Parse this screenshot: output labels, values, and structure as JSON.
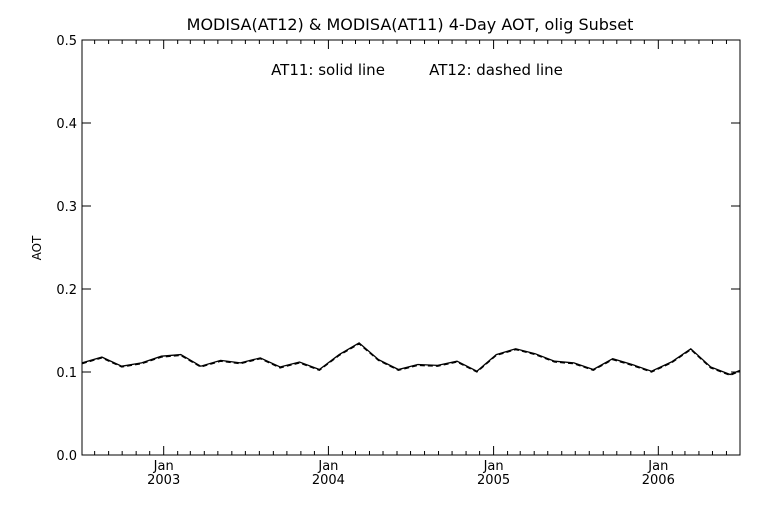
{
  "chart_data": {
    "type": "line",
    "title": "MODISA(AT12) & MODISA(AT11) 4-Day AOT, olig Subset",
    "legend_text": [
      "AT11: solid line",
      "AT12: dashed line"
    ],
    "legend_placement": "top-center",
    "xlabel": "",
    "ylabel": "AOT",
    "ylim": [
      0.0,
      0.5
    ],
    "xlim": [
      "2002-07-04",
      "2006-07-01"
    ],
    "yticks": [
      "0.0",
      "0.1",
      "0.2",
      "0.3",
      "0.4",
      "0.5"
    ],
    "xticks": [
      {
        "x": "2003-01-01",
        "month": "Jan",
        "year": "2003"
      },
      {
        "x": "2004-01-01",
        "month": "Jan",
        "year": "2004"
      },
      {
        "x": "2005-01-01",
        "month": "Jan",
        "year": "2005"
      },
      {
        "x": "2006-01-01",
        "month": "Jan",
        "year": "2006"
      }
    ],
    "grid": false,
    "x": [
      "2002-07-04",
      "2002-08-17",
      "2002-09-30",
      "2002-11-13",
      "2002-12-27",
      "2003-02-08",
      "2003-03-24",
      "2003-05-07",
      "2003-06-20",
      "2003-08-03",
      "2003-09-16",
      "2003-10-29",
      "2003-12-12",
      "2004-01-25",
      "2004-03-09",
      "2004-04-21",
      "2004-06-04",
      "2004-07-17",
      "2004-08-30",
      "2004-10-12",
      "2004-11-25",
      "2005-01-07",
      "2005-02-19",
      "2005-04-03",
      "2005-05-16",
      "2005-06-28",
      "2005-08-10",
      "2005-09-22",
      "2005-11-04",
      "2005-12-17",
      "2006-01-30",
      "2006-03-14",
      "2006-04-27",
      "2006-06-09",
      "2006-07-01"
    ],
    "series": [
      {
        "name": "AT11",
        "style": "solid",
        "values": [
          0.111,
          0.118,
          0.107,
          0.111,
          0.119,
          0.121,
          0.107,
          0.114,
          0.111,
          0.117,
          0.106,
          0.112,
          0.103,
          0.121,
          0.135,
          0.115,
          0.103,
          0.109,
          0.108,
          0.113,
          0.101,
          0.121,
          0.128,
          0.122,
          0.113,
          0.111,
          0.103,
          0.116,
          0.109,
          0.101,
          0.112,
          0.128,
          0.106,
          0.097,
          0.102
        ]
      },
      {
        "name": "AT12",
        "style": "dashed",
        "values": [
          0.11,
          0.117,
          0.106,
          0.11,
          0.118,
          0.12,
          0.106,
          0.113,
          0.11,
          0.116,
          0.105,
          0.111,
          0.102,
          0.12,
          0.134,
          0.114,
          0.102,
          0.108,
          0.107,
          0.112,
          0.1,
          0.12,
          0.127,
          0.121,
          0.112,
          0.11,
          0.102,
          0.115,
          0.108,
          0.1,
          0.111,
          0.127,
          0.105,
          0.096,
          0.101
        ]
      }
    ]
  }
}
